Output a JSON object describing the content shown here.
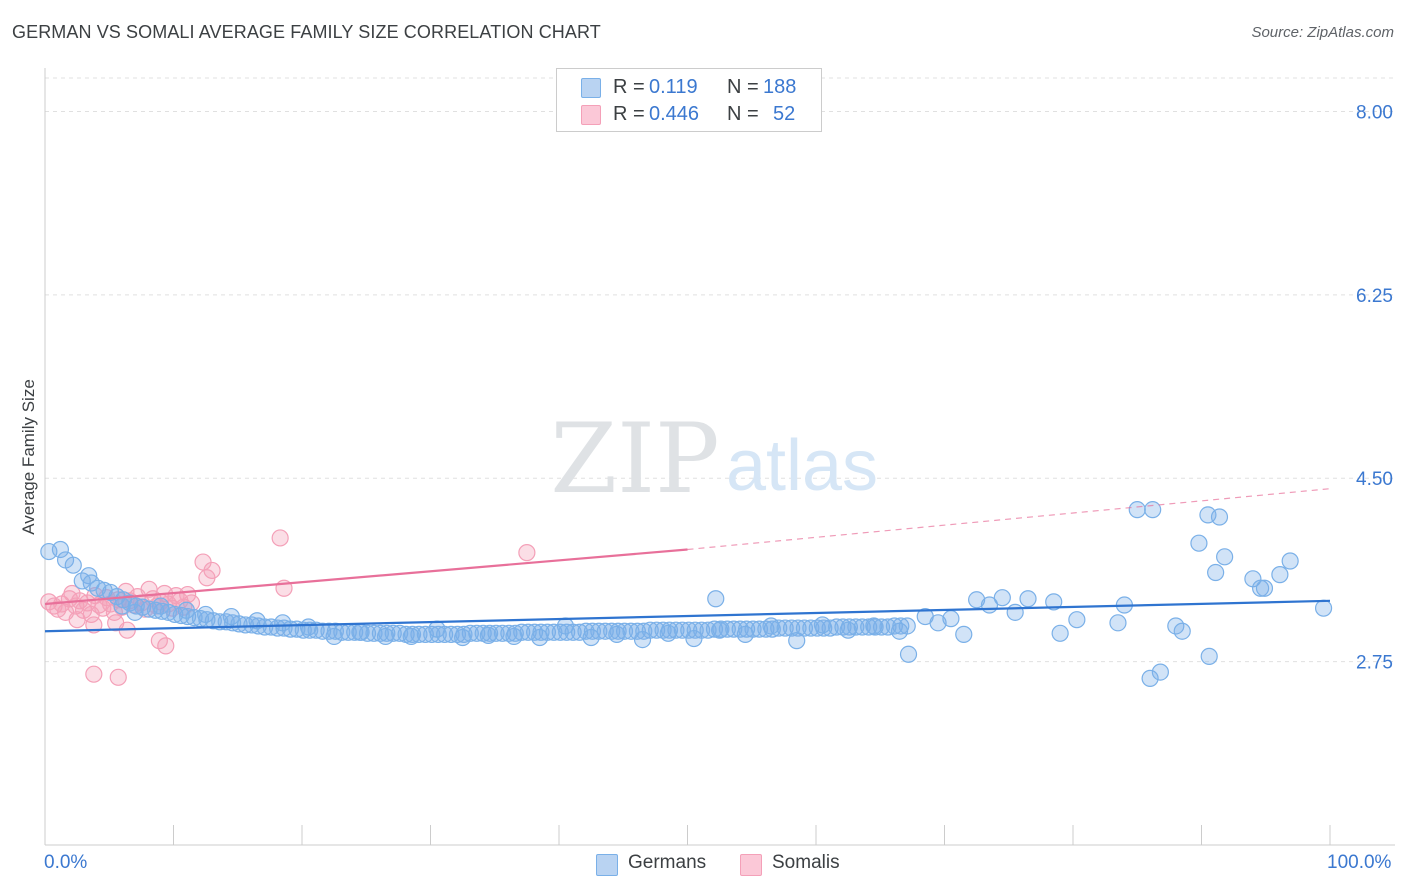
{
  "title": "GERMAN VS SOMALI AVERAGE FAMILY SIZE CORRELATION CHART",
  "source": "Source: ZipAtlas.com",
  "watermark": {
    "zip": "ZIP",
    "atlas": "atlas"
  },
  "colors": {
    "german": "#7ab0e8",
    "german_line": "#2f74d0",
    "somali": "#f4a0b8",
    "somali_line": "#e8709a",
    "axis_text": "#3b78d0",
    "grid": "#e0e0e0"
  },
  "legend": {
    "rows": [
      {
        "r_label": "R =",
        "r_value": "0.119",
        "n_label": "N =",
        "n_value": "188"
      },
      {
        "r_label": "R =",
        "r_value": "0.446",
        "n_label": "N =",
        "n_value": "52"
      }
    ],
    "series_names": [
      "Germans",
      "Somalis"
    ]
  },
  "chart_data": {
    "type": "scatter",
    "title": "GERMAN VS SOMALI AVERAGE FAMILY SIZE CORRELATION CHART",
    "xlabel": "",
    "ylabel": "Average Family Size",
    "xlim": [
      0,
      100
    ],
    "ylim": [
      1.0,
      8.3
    ],
    "x_tick_labels": [
      "0.0%",
      "100.0%"
    ],
    "y_ticks": [
      2.75,
      4.5,
      6.25,
      8.0
    ],
    "y_tick_labels": [
      "2.75",
      "4.50",
      "6.25",
      "8.00"
    ],
    "series": [
      {
        "name": "Germans",
        "r": 0.119,
        "n": 188,
        "trend": {
          "x": [
            0,
            100
          ],
          "y": [
            3.04,
            3.33
          ]
        },
        "points": [
          [
            0.3,
            3.8
          ],
          [
            1.2,
            3.82
          ],
          [
            1.6,
            3.72
          ],
          [
            2.2,
            3.67
          ],
          [
            2.9,
            3.52
          ],
          [
            3.4,
            3.57
          ],
          [
            3.6,
            3.5
          ],
          [
            4.1,
            3.45
          ],
          [
            4.6,
            3.43
          ],
          [
            5.1,
            3.41
          ],
          [
            5.6,
            3.37
          ],
          [
            6.1,
            3.34
          ],
          [
            6.6,
            3.31
          ],
          [
            7.1,
            3.28
          ],
          [
            7.6,
            3.27
          ],
          [
            8.1,
            3.25
          ],
          [
            8.6,
            3.24
          ],
          [
            9.1,
            3.23
          ],
          [
            9.6,
            3.22
          ],
          [
            10.1,
            3.2
          ],
          [
            10.6,
            3.19
          ],
          [
            11.1,
            3.18
          ],
          [
            11.6,
            3.17
          ],
          [
            12.1,
            3.16
          ],
          [
            12.6,
            3.15
          ],
          [
            13.1,
            3.14
          ],
          [
            13.6,
            3.13
          ],
          [
            14.1,
            3.13
          ],
          [
            14.6,
            3.12
          ],
          [
            15.1,
            3.11
          ],
          [
            15.6,
            3.1
          ],
          [
            16.1,
            3.1
          ],
          [
            16.6,
            3.09
          ],
          [
            17.1,
            3.08
          ],
          [
            17.6,
            3.08
          ],
          [
            18.1,
            3.07
          ],
          [
            18.6,
            3.07
          ],
          [
            19.1,
            3.06
          ],
          [
            19.6,
            3.06
          ],
          [
            20.1,
            3.05
          ],
          [
            20.6,
            3.05
          ],
          [
            21.1,
            3.05
          ],
          [
            21.6,
            3.04
          ],
          [
            22.1,
            3.04
          ],
          [
            22.6,
            3.04
          ],
          [
            23.1,
            3.03
          ],
          [
            23.6,
            3.03
          ],
          [
            24.1,
            3.03
          ],
          [
            24.6,
            3.03
          ],
          [
            25.1,
            3.02
          ],
          [
            25.6,
            3.02
          ],
          [
            26.1,
            3.02
          ],
          [
            26.6,
            3.02
          ],
          [
            27.1,
            3.02
          ],
          [
            27.6,
            3.02
          ],
          [
            28.1,
            3.01
          ],
          [
            28.6,
            3.01
          ],
          [
            29.1,
            3.01
          ],
          [
            29.6,
            3.01
          ],
          [
            30.1,
            3.01
          ],
          [
            30.6,
            3.01
          ],
          [
            31.1,
            3.01
          ],
          [
            31.6,
            3.01
          ],
          [
            32.1,
            3.01
          ],
          [
            32.6,
            3.01
          ],
          [
            33.1,
            3.02
          ],
          [
            33.6,
            3.02
          ],
          [
            34.1,
            3.02
          ],
          [
            34.6,
            3.02
          ],
          [
            35.1,
            3.02
          ],
          [
            35.6,
            3.02
          ],
          [
            36.1,
            3.02
          ],
          [
            36.6,
            3.02
          ],
          [
            37.1,
            3.03
          ],
          [
            37.6,
            3.03
          ],
          [
            38.1,
            3.03
          ],
          [
            38.6,
            3.03
          ],
          [
            39.1,
            3.03
          ],
          [
            39.6,
            3.03
          ],
          [
            40.1,
            3.03
          ],
          [
            40.6,
            3.03
          ],
          [
            41.1,
            3.03
          ],
          [
            41.6,
            3.03
          ],
          [
            42.1,
            3.04
          ],
          [
            42.6,
            3.04
          ],
          [
            43.1,
            3.04
          ],
          [
            43.6,
            3.04
          ],
          [
            44.1,
            3.04
          ],
          [
            44.6,
            3.04
          ],
          [
            45.1,
            3.04
          ],
          [
            45.6,
            3.04
          ],
          [
            46.1,
            3.04
          ],
          [
            46.6,
            3.04
          ],
          [
            47.1,
            3.05
          ],
          [
            47.6,
            3.05
          ],
          [
            48.1,
            3.05
          ],
          [
            48.6,
            3.05
          ],
          [
            49.1,
            3.05
          ],
          [
            49.6,
            3.05
          ],
          [
            50.1,
            3.05
          ],
          [
            50.6,
            3.05
          ],
          [
            51.1,
            3.05
          ],
          [
            51.6,
            3.05
          ],
          [
            52.1,
            3.06
          ],
          [
            52.6,
            3.06
          ],
          [
            53.1,
            3.06
          ],
          [
            53.6,
            3.06
          ],
          [
            54.1,
            3.06
          ],
          [
            54.6,
            3.06
          ],
          [
            55.1,
            3.06
          ],
          [
            55.6,
            3.06
          ],
          [
            56.1,
            3.06
          ],
          [
            56.6,
            3.06
          ],
          [
            57.1,
            3.07
          ],
          [
            57.6,
            3.07
          ],
          [
            58.1,
            3.07
          ],
          [
            58.6,
            3.07
          ],
          [
            59.1,
            3.07
          ],
          [
            59.6,
            3.07
          ],
          [
            60.1,
            3.07
          ],
          [
            60.6,
            3.07
          ],
          [
            61.1,
            3.07
          ],
          [
            61.6,
            3.08
          ],
          [
            62.1,
            3.08
          ],
          [
            62.6,
            3.08
          ],
          [
            63.1,
            3.08
          ],
          [
            63.6,
            3.08
          ],
          [
            64.1,
            3.08
          ],
          [
            64.6,
            3.08
          ],
          [
            65.1,
            3.08
          ],
          [
            65.6,
            3.08
          ],
          [
            66.1,
            3.09
          ],
          [
            66.6,
            3.09
          ],
          [
            67.1,
            3.09
          ],
          [
            6.0,
            3.28
          ],
          [
            7.0,
            3.22
          ],
          [
            9.0,
            3.28
          ],
          [
            11.0,
            3.24
          ],
          [
            12.5,
            3.2
          ],
          [
            14.5,
            3.18
          ],
          [
            16.5,
            3.14
          ],
          [
            18.5,
            3.12
          ],
          [
            20.5,
            3.08
          ],
          [
            22.5,
            2.99
          ],
          [
            24.5,
            3.03
          ],
          [
            26.5,
            2.99
          ],
          [
            28.5,
            2.99
          ],
          [
            30.5,
            3.06
          ],
          [
            32.5,
            2.98
          ],
          [
            34.5,
            3.0
          ],
          [
            36.5,
            2.99
          ],
          [
            38.5,
            2.98
          ],
          [
            40.5,
            3.09
          ],
          [
            42.5,
            2.98
          ],
          [
            44.5,
            3.01
          ],
          [
            46.5,
            2.96
          ],
          [
            48.5,
            3.02
          ],
          [
            50.5,
            2.97
          ],
          [
            52.5,
            3.05
          ],
          [
            54.5,
            3.01
          ],
          [
            56.5,
            3.09
          ],
          [
            58.5,
            2.95
          ],
          [
            60.5,
            3.1
          ],
          [
            62.5,
            3.05
          ],
          [
            64.5,
            3.09
          ],
          [
            66.5,
            3.04
          ],
          [
            67.2,
            2.82
          ],
          [
            68.5,
            3.18
          ],
          [
            69.5,
            3.12
          ],
          [
            70.5,
            3.16
          ],
          [
            71.5,
            3.01
          ],
          [
            72.5,
            3.34
          ],
          [
            73.5,
            3.29
          ],
          [
            74.5,
            3.36
          ],
          [
            75.5,
            3.22
          ],
          [
            76.5,
            3.35
          ],
          [
            78.5,
            3.32
          ],
          [
            79.0,
            3.02
          ],
          [
            80.3,
            3.15
          ],
          [
            83.5,
            3.12
          ],
          [
            84.0,
            3.29
          ],
          [
            86.0,
            2.59
          ],
          [
            86.8,
            2.65
          ],
          [
            88.0,
            3.09
          ],
          [
            88.5,
            3.04
          ],
          [
            89.8,
            3.88
          ],
          [
            90.6,
            2.8
          ],
          [
            91.1,
            3.6
          ],
          [
            91.8,
            3.75
          ],
          [
            94.0,
            3.54
          ],
          [
            94.6,
            3.45
          ],
          [
            94.9,
            3.45
          ],
          [
            96.1,
            3.58
          ],
          [
            96.9,
            3.71
          ],
          [
            99.5,
            3.26
          ],
          [
            52.2,
            3.35
          ],
          [
            85.0,
            4.2
          ],
          [
            86.2,
            4.2
          ],
          [
            90.5,
            4.15
          ],
          [
            91.4,
            4.13
          ]
        ]
      },
      {
        "name": "Somalis",
        "r": 0.446,
        "n": 52,
        "trend": {
          "x": [
            0,
            50
          ],
          "y": [
            3.3,
            3.82
          ]
        },
        "trend_extension": {
          "x": [
            50,
            100
          ],
          "y": [
            3.82,
            4.4
          ]
        },
        "points": [
          [
            0.3,
            3.32
          ],
          [
            0.7,
            3.28
          ],
          [
            1.0,
            3.25
          ],
          [
            1.3,
            3.3
          ],
          [
            1.6,
            3.22
          ],
          [
            1.9,
            3.35
          ],
          [
            2.1,
            3.4
          ],
          [
            2.4,
            3.28
          ],
          [
            2.7,
            3.33
          ],
          [
            3.0,
            3.24
          ],
          [
            3.3,
            3.31
          ],
          [
            3.6,
            3.2
          ],
          [
            3.9,
            3.38
          ],
          [
            4.2,
            3.29
          ],
          [
            4.5,
            3.26
          ],
          [
            4.8,
            3.36
          ],
          [
            5.1,
            3.3
          ],
          [
            5.4,
            3.22
          ],
          [
            5.7,
            3.34
          ],
          [
            6.0,
            3.27
          ],
          [
            6.3,
            3.42
          ],
          [
            6.6,
            3.33
          ],
          [
            6.9,
            3.29
          ],
          [
            7.2,
            3.37
          ],
          [
            7.5,
            3.31
          ],
          [
            7.8,
            3.25
          ],
          [
            8.1,
            3.44
          ],
          [
            8.4,
            3.35
          ],
          [
            8.7,
            3.28
          ],
          [
            9.0,
            3.32
          ],
          [
            9.3,
            3.4
          ],
          [
            9.6,
            3.3
          ],
          [
            9.9,
            3.26
          ],
          [
            10.2,
            3.38
          ],
          [
            10.5,
            3.33
          ],
          [
            10.8,
            3.27
          ],
          [
            11.1,
            3.39
          ],
          [
            11.4,
            3.31
          ],
          [
            12.3,
            3.7
          ],
          [
            12.6,
            3.55
          ],
          [
            13.0,
            3.62
          ],
          [
            18.3,
            3.93
          ],
          [
            18.6,
            3.45
          ],
          [
            2.5,
            3.15
          ],
          [
            3.8,
            3.1
          ],
          [
            5.5,
            3.12
          ],
          [
            6.4,
            3.05
          ],
          [
            8.9,
            2.95
          ],
          [
            9.4,
            2.9
          ],
          [
            3.8,
            2.63
          ],
          [
            5.7,
            2.6
          ],
          [
            37.5,
            3.79
          ]
        ]
      }
    ]
  }
}
